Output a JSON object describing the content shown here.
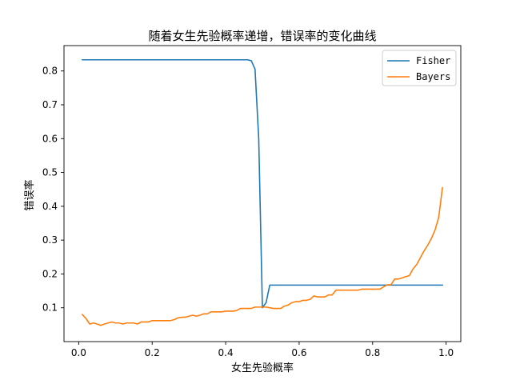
{
  "chart_data": {
    "type": "line",
    "title": "随着女生先验概率递增，错误率的变化曲线",
    "xlabel": "女生先验概率",
    "ylabel": "错误率",
    "xlim": [
      -0.04,
      1.04
    ],
    "ylim": [
      0.0,
      0.875
    ],
    "xticks": [
      0.0,
      0.2,
      0.4,
      0.6,
      0.8,
      1.0
    ],
    "xtick_labels": [
      "0.0",
      "0.2",
      "0.4",
      "0.6",
      "0.8",
      "1.0"
    ],
    "yticks": [
      0.1,
      0.2,
      0.3,
      0.4,
      0.5,
      0.6,
      0.7,
      0.8
    ],
    "ytick_labels": [
      "0.1",
      "0.2",
      "0.3",
      "0.4",
      "0.5",
      "0.6",
      "0.7",
      "0.8"
    ],
    "grid": false,
    "legend_position": "top-right",
    "series": [
      {
        "name": "Fisher",
        "color": "#1f77b4",
        "x": [
          0.01,
          0.05,
          0.1,
          0.15,
          0.2,
          0.25,
          0.3,
          0.35,
          0.4,
          0.45,
          0.46,
          0.47,
          0.48,
          0.49,
          0.5,
          0.51,
          0.52,
          0.55,
          0.6,
          0.65,
          0.7,
          0.75,
          0.8,
          0.85,
          0.9,
          0.95,
          0.99
        ],
        "y": [
          0.833,
          0.833,
          0.833,
          0.833,
          0.833,
          0.833,
          0.833,
          0.833,
          0.833,
          0.833,
          0.833,
          0.83,
          0.805,
          0.6,
          0.1,
          0.115,
          0.167,
          0.167,
          0.167,
          0.167,
          0.167,
          0.167,
          0.167,
          0.167,
          0.167,
          0.167,
          0.167
        ]
      },
      {
        "name": "Bayers",
        "color": "#ff7f0e",
        "x": [
          0.01,
          0.02,
          0.03,
          0.04,
          0.05,
          0.06,
          0.07,
          0.08,
          0.09,
          0.1,
          0.11,
          0.12,
          0.13,
          0.14,
          0.15,
          0.16,
          0.17,
          0.18,
          0.19,
          0.2,
          0.21,
          0.22,
          0.23,
          0.24,
          0.25,
          0.26,
          0.27,
          0.28,
          0.29,
          0.3,
          0.31,
          0.32,
          0.33,
          0.34,
          0.35,
          0.36,
          0.37,
          0.38,
          0.39,
          0.4,
          0.41,
          0.42,
          0.43,
          0.44,
          0.45,
          0.46,
          0.47,
          0.48,
          0.49,
          0.5,
          0.51,
          0.52,
          0.53,
          0.54,
          0.55,
          0.56,
          0.57,
          0.58,
          0.59,
          0.6,
          0.61,
          0.62,
          0.63,
          0.64,
          0.65,
          0.66,
          0.67,
          0.68,
          0.69,
          0.7,
          0.71,
          0.72,
          0.73,
          0.74,
          0.75,
          0.76,
          0.77,
          0.78,
          0.79,
          0.8,
          0.81,
          0.82,
          0.83,
          0.84,
          0.85,
          0.86,
          0.87,
          0.88,
          0.89,
          0.9,
          0.91,
          0.92,
          0.93,
          0.94,
          0.95,
          0.96,
          0.97,
          0.98,
          0.99
        ],
        "y": [
          0.08,
          0.068,
          0.052,
          0.055,
          0.052,
          0.048,
          0.052,
          0.055,
          0.058,
          0.055,
          0.055,
          0.052,
          0.055,
          0.055,
          0.055,
          0.052,
          0.058,
          0.058,
          0.058,
          0.062,
          0.062,
          0.062,
          0.062,
          0.062,
          0.062,
          0.065,
          0.07,
          0.072,
          0.072,
          0.075,
          0.078,
          0.075,
          0.078,
          0.082,
          0.082,
          0.088,
          0.088,
          0.088,
          0.088,
          0.09,
          0.09,
          0.09,
          0.092,
          0.098,
          0.098,
          0.098,
          0.098,
          0.102,
          0.102,
          0.102,
          0.102,
          0.1,
          0.098,
          0.098,
          0.098,
          0.105,
          0.108,
          0.115,
          0.118,
          0.118,
          0.122,
          0.122,
          0.125,
          0.135,
          0.132,
          0.132,
          0.132,
          0.138,
          0.138,
          0.152,
          0.152,
          0.152,
          0.152,
          0.152,
          0.152,
          0.152,
          0.155,
          0.155,
          0.155,
          0.155,
          0.155,
          0.155,
          0.162,
          0.168,
          0.168,
          0.185,
          0.185,
          0.188,
          0.192,
          0.195,
          0.215,
          0.228,
          0.248,
          0.268,
          0.285,
          0.305,
          0.33,
          0.368,
          0.455
        ]
      }
    ]
  }
}
